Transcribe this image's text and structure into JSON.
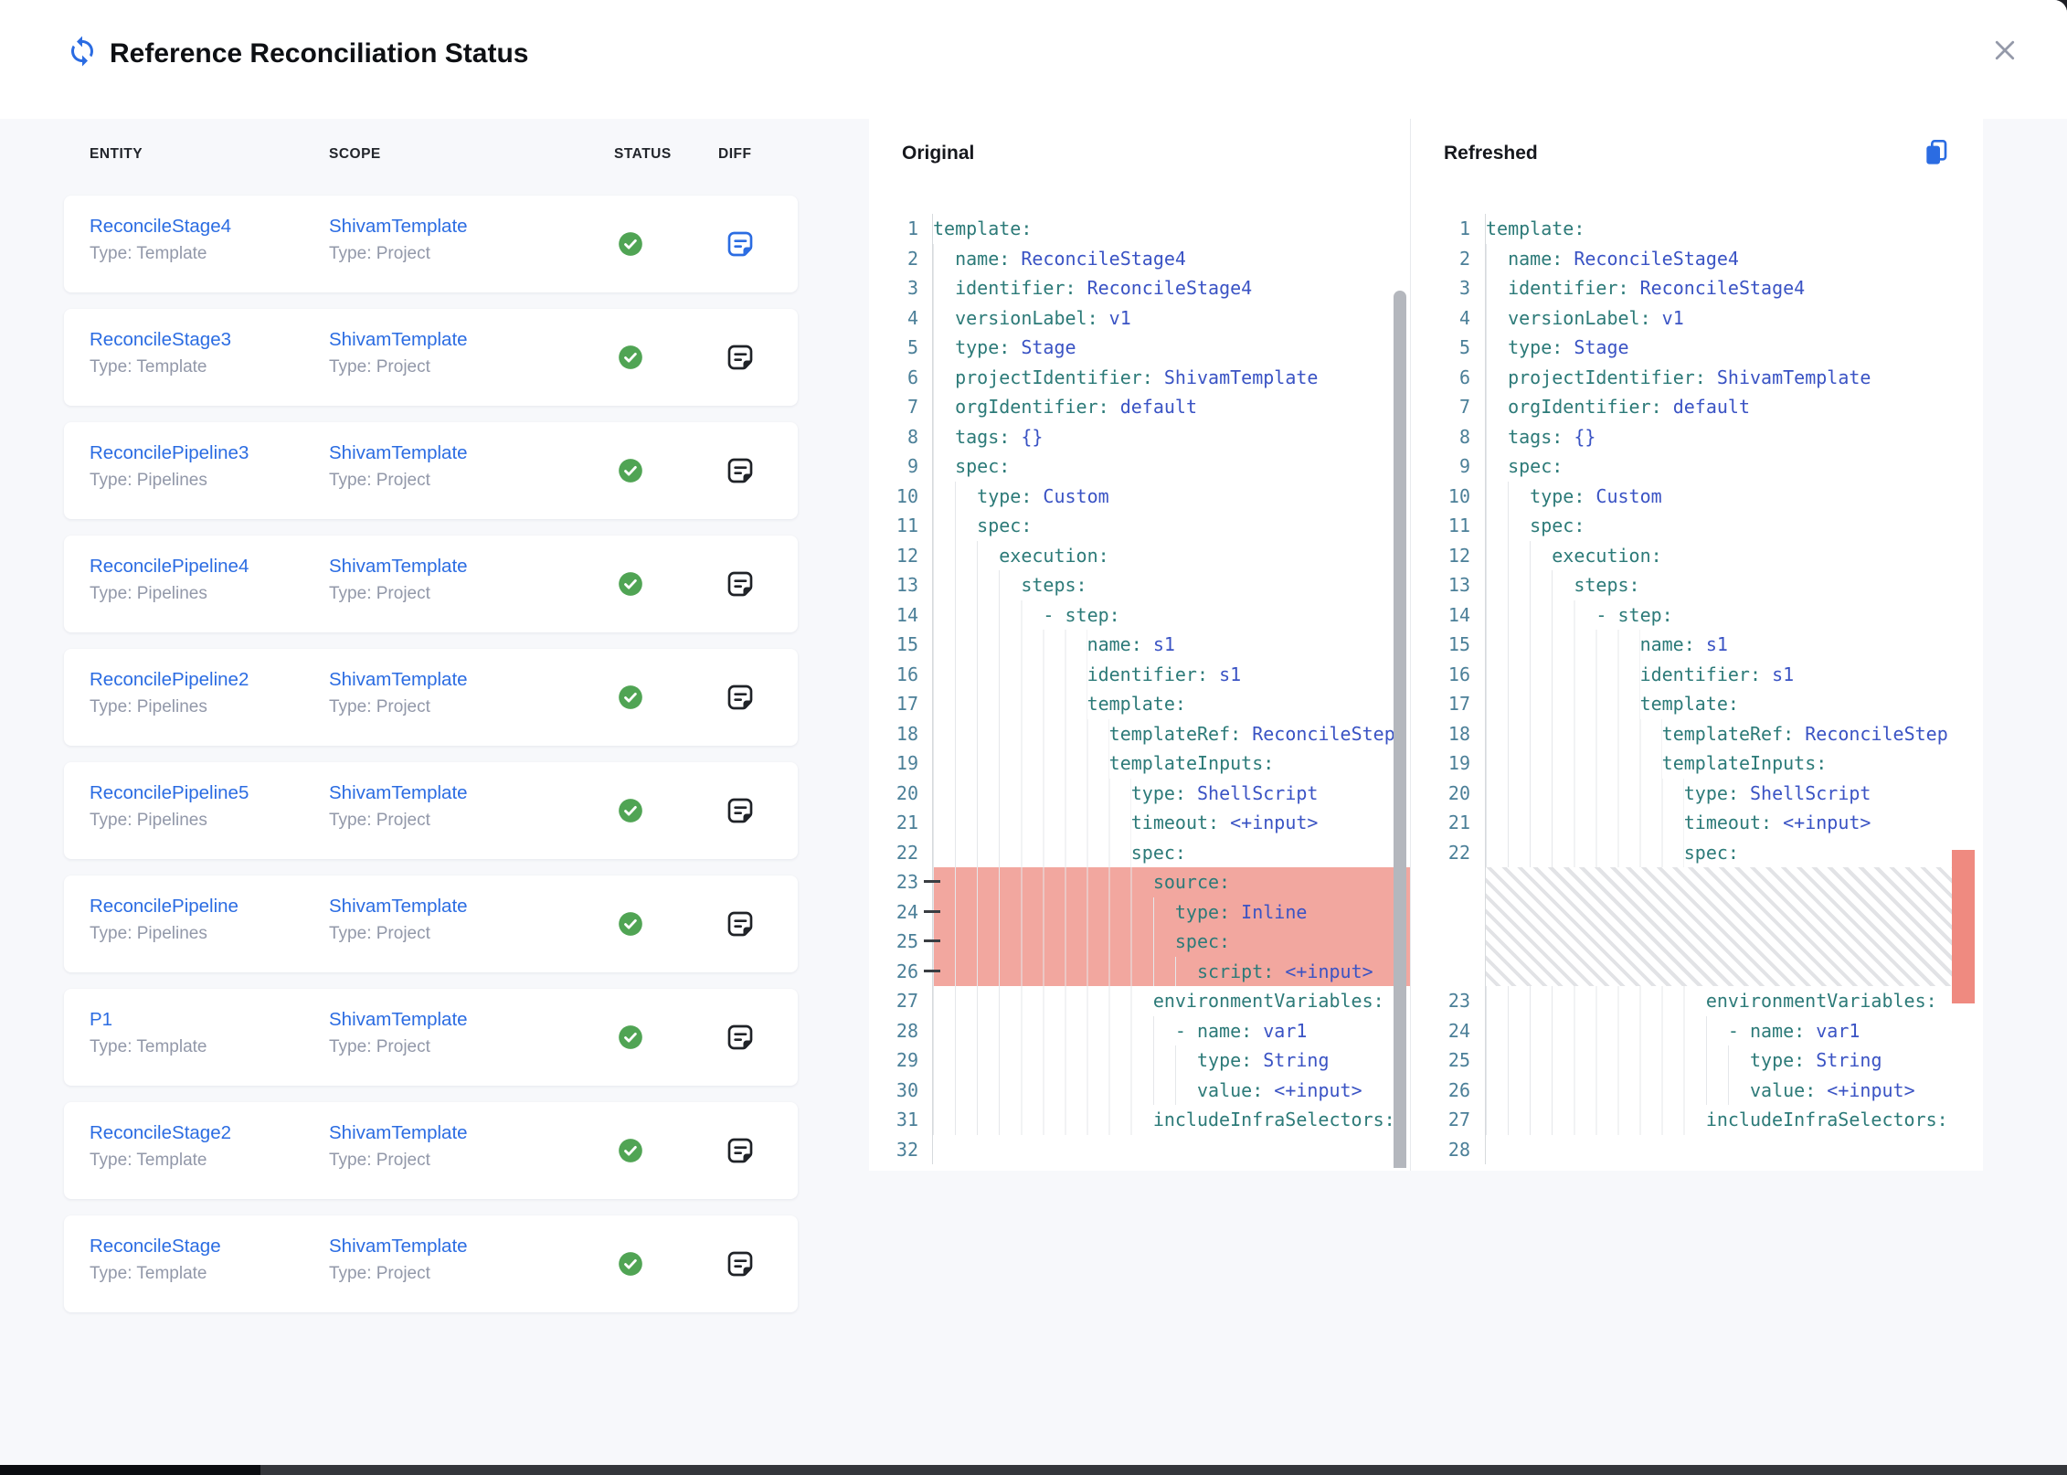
{
  "header": {
    "title": "Reference Reconciliation Status"
  },
  "table": {
    "columns": [
      "ENTITY",
      "SCOPE",
      "STATUS",
      "DIFF"
    ],
    "rows": [
      {
        "entity": "ReconcileStage4",
        "entity_type": "Type: Template",
        "scope": "ShivamTemplate",
        "scope_type": "Type: Project",
        "status": "success",
        "diff_active": true
      },
      {
        "entity": "ReconcileStage3",
        "entity_type": "Type: Template",
        "scope": "ShivamTemplate",
        "scope_type": "Type: Project",
        "status": "success",
        "diff_active": false
      },
      {
        "entity": "ReconcilePipeline3",
        "entity_type": "Type: Pipelines",
        "scope": "ShivamTemplate",
        "scope_type": "Type: Project",
        "status": "success",
        "diff_active": false
      },
      {
        "entity": "ReconcilePipeline4",
        "entity_type": "Type: Pipelines",
        "scope": "ShivamTemplate",
        "scope_type": "Type: Project",
        "status": "success",
        "diff_active": false
      },
      {
        "entity": "ReconcilePipeline2",
        "entity_type": "Type: Pipelines",
        "scope": "ShivamTemplate",
        "scope_type": "Type: Project",
        "status": "success",
        "diff_active": false
      },
      {
        "entity": "ReconcilePipeline5",
        "entity_type": "Type: Pipelines",
        "scope": "ShivamTemplate",
        "scope_type": "Type: Project",
        "status": "success",
        "diff_active": false
      },
      {
        "entity": "ReconcilePipeline",
        "entity_type": "Type: Pipelines",
        "scope": "ShivamTemplate",
        "scope_type": "Type: Project",
        "status": "success",
        "diff_active": false
      },
      {
        "entity": "P1",
        "entity_type": "Type: Template",
        "scope": "ShivamTemplate",
        "scope_type": "Type: Project",
        "status": "success",
        "diff_active": false
      },
      {
        "entity": "ReconcileStage2",
        "entity_type": "Type: Template",
        "scope": "ShivamTemplate",
        "scope_type": "Type: Project",
        "status": "success",
        "diff_active": false
      },
      {
        "entity": "ReconcileStage",
        "entity_type": "Type: Template",
        "scope": "ShivamTemplate",
        "scope_type": "Type: Project",
        "status": "success",
        "diff_active": false
      }
    ]
  },
  "diff": {
    "original_label": "Original",
    "refreshed_label": "Refreshed",
    "original_lines": [
      {
        "n": 1,
        "ind": 0,
        "key": "template"
      },
      {
        "n": 2,
        "ind": 2,
        "key": "name",
        "val": "ReconcileStage4"
      },
      {
        "n": 3,
        "ind": 2,
        "key": "identifier",
        "val": "ReconcileStage4"
      },
      {
        "n": 4,
        "ind": 2,
        "key": "versionLabel",
        "val": "v1"
      },
      {
        "n": 5,
        "ind": 2,
        "key": "type",
        "val": "Stage"
      },
      {
        "n": 6,
        "ind": 2,
        "key": "projectIdentifier",
        "val": "ShivamTemplate"
      },
      {
        "n": 7,
        "ind": 2,
        "key": "orgIdentifier",
        "val": "default"
      },
      {
        "n": 8,
        "ind": 2,
        "key": "tags",
        "val": "{}"
      },
      {
        "n": 9,
        "ind": 2,
        "key": "spec"
      },
      {
        "n": 10,
        "ind": 4,
        "key": "type",
        "val": "Custom"
      },
      {
        "n": 11,
        "ind": 4,
        "key": "spec"
      },
      {
        "n": 12,
        "ind": 6,
        "key": "execution"
      },
      {
        "n": 13,
        "ind": 8,
        "key": "steps"
      },
      {
        "n": 14,
        "ind": 10,
        "dash": true,
        "key": "step"
      },
      {
        "n": 15,
        "ind": 14,
        "key": "name",
        "val": "s1"
      },
      {
        "n": 16,
        "ind": 14,
        "key": "identifier",
        "val": "s1"
      },
      {
        "n": 17,
        "ind": 14,
        "key": "template"
      },
      {
        "n": 18,
        "ind": 16,
        "key": "templateRef",
        "val": "ReconcileStep"
      },
      {
        "n": 19,
        "ind": 16,
        "key": "templateInputs"
      },
      {
        "n": 20,
        "ind": 18,
        "key": "type",
        "val": "ShellScript"
      },
      {
        "n": 21,
        "ind": 18,
        "key": "timeout",
        "val": "<+input>"
      },
      {
        "n": 22,
        "ind": 18,
        "key": "spec"
      },
      {
        "n": 23,
        "ind": 20,
        "key": "source",
        "del": true
      },
      {
        "n": 24,
        "ind": 22,
        "key": "type",
        "val": "Inline",
        "del": true
      },
      {
        "n": 25,
        "ind": 22,
        "key": "spec",
        "del": true
      },
      {
        "n": 26,
        "ind": 24,
        "key": "script",
        "val": "<+input>",
        "del": true
      },
      {
        "n": 27,
        "ind": 20,
        "key": "environmentVariables"
      },
      {
        "n": 28,
        "ind": 22,
        "dash": true,
        "key": "name",
        "val": "var1"
      },
      {
        "n": 29,
        "ind": 24,
        "key": "type",
        "val": "String"
      },
      {
        "n": 30,
        "ind": 24,
        "key": "value",
        "val": "<+input>"
      },
      {
        "n": 31,
        "ind": 20,
        "key": "includeInfraSelectors"
      },
      {
        "n": 32,
        "ind": 0,
        "key": ""
      }
    ],
    "refreshed_lines": [
      {
        "n": 1,
        "ind": 0,
        "key": "template"
      },
      {
        "n": 2,
        "ind": 2,
        "key": "name",
        "val": "ReconcileStage4"
      },
      {
        "n": 3,
        "ind": 2,
        "key": "identifier",
        "val": "ReconcileStage4"
      },
      {
        "n": 4,
        "ind": 2,
        "key": "versionLabel",
        "val": "v1"
      },
      {
        "n": 5,
        "ind": 2,
        "key": "type",
        "val": "Stage"
      },
      {
        "n": 6,
        "ind": 2,
        "key": "projectIdentifier",
        "val": "ShivamTemplate"
      },
      {
        "n": 7,
        "ind": 2,
        "key": "orgIdentifier",
        "val": "default"
      },
      {
        "n": 8,
        "ind": 2,
        "key": "tags",
        "val": "{}"
      },
      {
        "n": 9,
        "ind": 2,
        "key": "spec"
      },
      {
        "n": 10,
        "ind": 4,
        "key": "type",
        "val": "Custom"
      },
      {
        "n": 11,
        "ind": 4,
        "key": "spec"
      },
      {
        "n": 12,
        "ind": 6,
        "key": "execution"
      },
      {
        "n": 13,
        "ind": 8,
        "key": "steps"
      },
      {
        "n": 14,
        "ind": 10,
        "dash": true,
        "key": "step"
      },
      {
        "n": 15,
        "ind": 14,
        "key": "name",
        "val": "s1"
      },
      {
        "n": 16,
        "ind": 14,
        "key": "identifier",
        "val": "s1"
      },
      {
        "n": 17,
        "ind": 14,
        "key": "template"
      },
      {
        "n": 18,
        "ind": 16,
        "key": "templateRef",
        "val": "ReconcileStep"
      },
      {
        "n": 19,
        "ind": 16,
        "key": "templateInputs"
      },
      {
        "n": 20,
        "ind": 18,
        "key": "type",
        "val": "ShellScript"
      },
      {
        "n": 21,
        "ind": 18,
        "key": "timeout",
        "val": "<+input>"
      },
      {
        "n": 22,
        "ind": 18,
        "key": "spec"
      },
      {
        "hatch": true,
        "span": 4
      },
      {
        "n": 23,
        "ind": 20,
        "key": "environmentVariables"
      },
      {
        "n": 24,
        "ind": 22,
        "dash": true,
        "key": "name",
        "val": "var1"
      },
      {
        "n": 25,
        "ind": 24,
        "key": "type",
        "val": "String"
      },
      {
        "n": 26,
        "ind": 24,
        "key": "value",
        "val": "<+input>"
      },
      {
        "n": 27,
        "ind": 20,
        "key": "includeInfraSelectors"
      },
      {
        "n": 28,
        "ind": 0,
        "key": ""
      }
    ]
  },
  "colors": {
    "accent_blue": "#2b6ce2",
    "success_green": "#50a454",
    "deleted_line_bg": "#f2a79f",
    "overview_marker_red": "#ef8a80",
    "yaml_key": "#2c7a78",
    "yaml_value": "#3a53c4",
    "line_number": "#4b7f98"
  }
}
